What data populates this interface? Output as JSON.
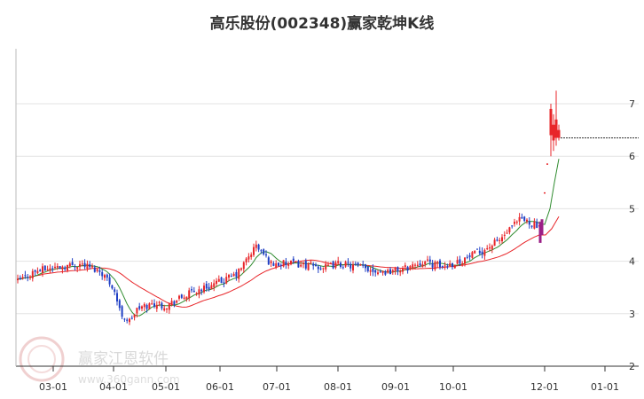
{
  "chart_data": {
    "type": "candlestick",
    "title": "高乐股份(002348)赢家乾坤K线",
    "y_ticks": [
      2,
      3,
      4,
      5,
      6,
      7
    ],
    "ylim": [
      2,
      7.5
    ],
    "x_ticks": [
      "03-01",
      "04-01",
      "05-01",
      "06-01",
      "07-01",
      "08-01",
      "09-01",
      "10-01",
      "12-01",
      "01-01"
    ],
    "colors": {
      "up": "#e8262a",
      "down": "#1f3fc4",
      "special": "#9b1f86",
      "ma_short": "#2e8b2e",
      "ma_long": "#e8262a",
      "grid": "#e3e3e3",
      "dashed_line": "#333333"
    },
    "price_points": [
      {
        "date": "02-08",
        "close": 3.55
      },
      {
        "date": "02-20",
        "close": 3.8
      },
      {
        "date": "03-01",
        "close": 3.88
      },
      {
        "date": "03-15",
        "close": 3.95
      },
      {
        "date": "03-25",
        "close": 3.8
      },
      {
        "date": "04-01",
        "close": 3.5
      },
      {
        "date": "04-05",
        "close": 3.0
      },
      {
        "date": "04-10",
        "close": 2.85
      },
      {
        "date": "04-15",
        "close": 3.1
      },
      {
        "date": "04-25",
        "close": 3.2
      },
      {
        "date": "05-01",
        "close": 3.15
      },
      {
        "date": "05-15",
        "close": 3.4
      },
      {
        "date": "06-01",
        "close": 3.6
      },
      {
        "date": "06-10",
        "close": 3.75
      },
      {
        "date": "06-20",
        "close": 4.3
      },
      {
        "date": "06-28",
        "close": 3.95
      },
      {
        "date": "07-10",
        "close": 3.95
      },
      {
        "date": "07-25",
        "close": 3.88
      },
      {
        "date": "08-01",
        "close": 3.95
      },
      {
        "date": "08-10",
        "close": 3.9
      },
      {
        "date": "08-25",
        "close": 3.8
      },
      {
        "date": "09-05",
        "close": 3.85
      },
      {
        "date": "09-15",
        "close": 4.0
      },
      {
        "date": "09-25",
        "close": 3.9
      },
      {
        "date": "10-05",
        "close": 4.0
      },
      {
        "date": "10-20",
        "close": 4.2
      },
      {
        "date": "11-01",
        "close": 4.4
      },
      {
        "date": "11-15",
        "close": 4.8
      },
      {
        "date": "11-25",
        "close": 4.7
      },
      {
        "date": "12-01",
        "close": 4.5
      },
      {
        "date": "12-04",
        "close": 6.2
      },
      {
        "date": "12-08",
        "close": 6.5
      }
    ],
    "dashed_level": 6.35,
    "watermark": {
      "brand": "赢家江恩软件",
      "url": "www.360gann.com"
    }
  }
}
